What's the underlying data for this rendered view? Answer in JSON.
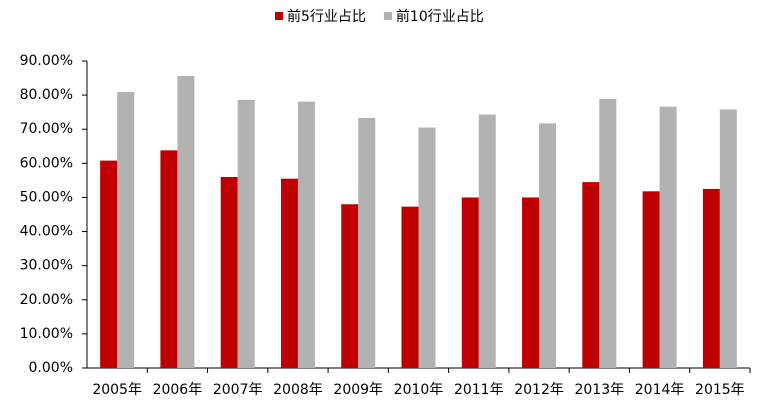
{
  "chart_data": {
    "type": "bar",
    "categories": [
      "2005年",
      "2006年",
      "2007年",
      "2008年",
      "2009年",
      "2010年",
      "2011年",
      "2012年",
      "2013年",
      "2014年",
      "2015年"
    ],
    "series": [
      {
        "name": "前5行业占比",
        "color": "#c00000",
        "values": [
          60.8,
          63.8,
          56.0,
          55.5,
          48.0,
          47.3,
          50.0,
          50.0,
          54.5,
          51.8,
          52.5
        ]
      },
      {
        "name": "前10行业占比",
        "color": "#b2b2b2",
        "values": [
          80.9,
          85.6,
          78.6,
          78.1,
          73.3,
          70.5,
          74.3,
          71.7,
          78.9,
          76.6,
          75.8
        ]
      }
    ],
    "ylim": [
      0,
      90
    ],
    "yticks": [
      {
        "value": 0,
        "label": "0.00%"
      },
      {
        "value": 10,
        "label": "10.00%"
      },
      {
        "value": 20,
        "label": "20.00%"
      },
      {
        "value": 30,
        "label": "30.00%"
      },
      {
        "value": 40,
        "label": "40.00%"
      },
      {
        "value": 50,
        "label": "50.00%"
      },
      {
        "value": 60,
        "label": "60.00%"
      },
      {
        "value": 70,
        "label": "70.00%"
      },
      {
        "value": 80,
        "label": "80.00%"
      },
      {
        "value": 90,
        "label": "90.00%"
      }
    ],
    "legend": "top"
  }
}
